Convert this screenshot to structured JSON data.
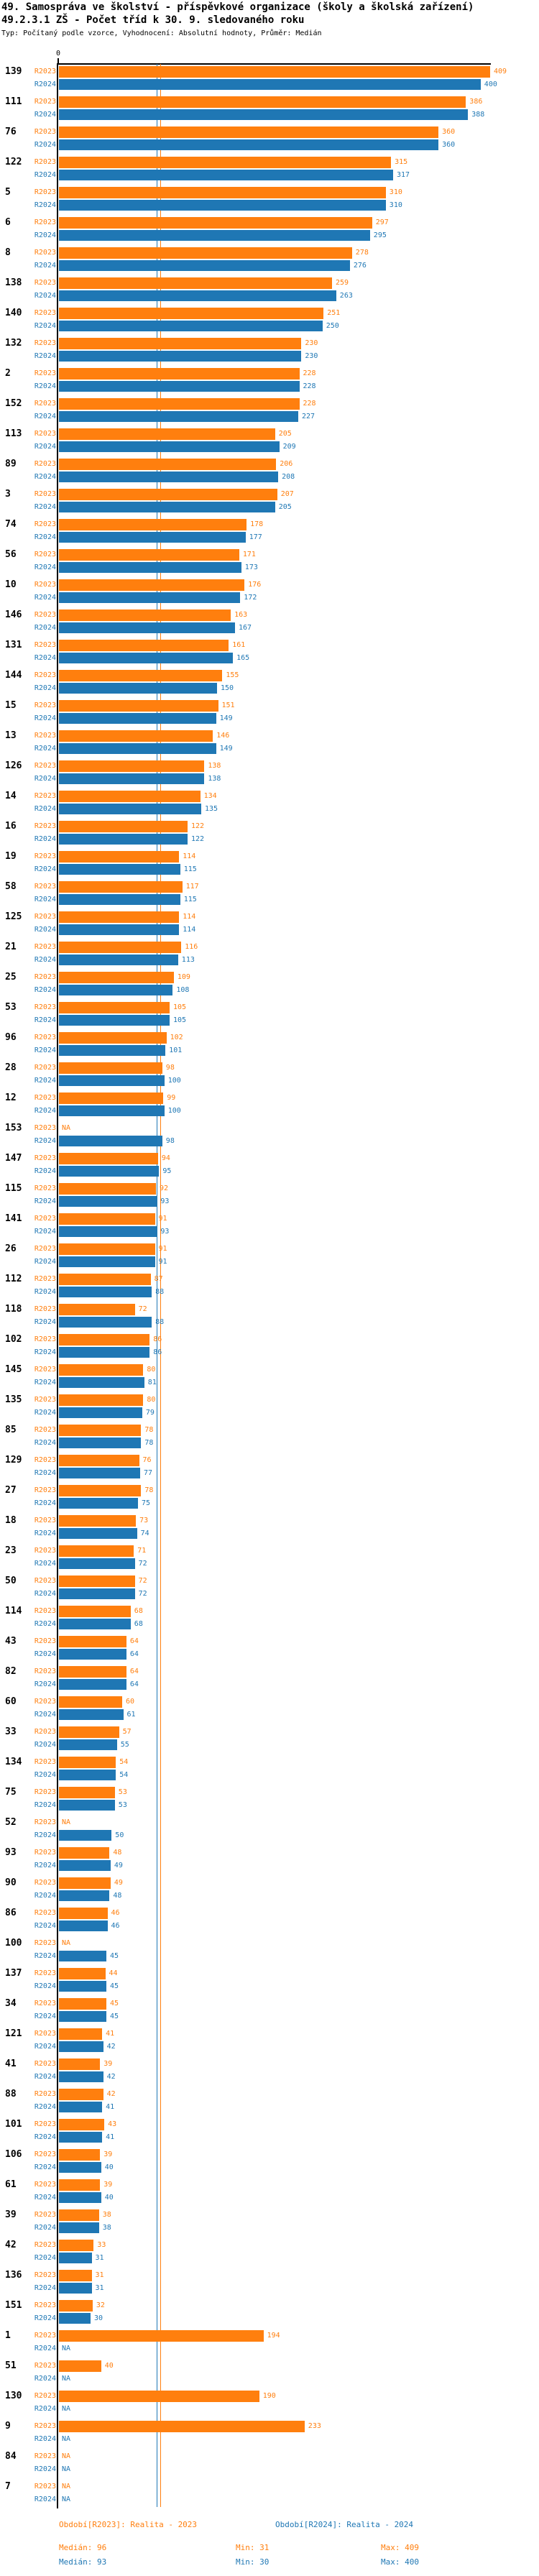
{
  "title_line1": "49. Samospráva ve školství - příspěvkové organizace (školy a školská zařízení)",
  "title_line2": "49.2.3.1 ZŠ - Počet tříd k 30. 9. sledovaného roku",
  "subtitle": "Typ: Počítaný podle vzorce, Vyhodnocení: Absolutní hodnoty, Průměr: Medián",
  "chart_data": {
    "type": "bar",
    "orientation": "horizontal",
    "x_axis": {
      "zero_label": "0",
      "x_max": 409
    },
    "series_labels": {
      "r2023": "R2023",
      "r2024": "R2024"
    },
    "colors": {
      "r2023": "#ff7f0e",
      "r2024": "#1f77b4"
    },
    "na_text": "NA",
    "median_values": {
      "r2023": 96,
      "r2024": 93
    },
    "legend": {
      "r2023": "Období[R2023]: Realita - 2023",
      "r2024": "Období[R2024]: Realita - 2024"
    },
    "stats": {
      "r2023": {
        "median": "Medián: 96",
        "min": "Min: 31",
        "max": "Max: 409"
      },
      "r2024": {
        "median": "Medián: 93",
        "min": "Min: 30",
        "max": "Max: 400"
      }
    },
    "rows": [
      {
        "id": "139",
        "r2023": 409,
        "r2024": 400
      },
      {
        "id": "111",
        "r2023": 386,
        "r2024": 388
      },
      {
        "id": "76",
        "r2023": 360,
        "r2024": 360
      },
      {
        "id": "122",
        "r2023": 315,
        "r2024": 317
      },
      {
        "id": "5",
        "r2023": 310,
        "r2024": 310
      },
      {
        "id": "6",
        "r2023": 297,
        "r2024": 295
      },
      {
        "id": "8",
        "r2023": 278,
        "r2024": 276
      },
      {
        "id": "138",
        "r2023": 259,
        "r2024": 263
      },
      {
        "id": "140",
        "r2023": 251,
        "r2024": 250
      },
      {
        "id": "132",
        "r2023": 230,
        "r2024": 230
      },
      {
        "id": "2",
        "r2023": 228,
        "r2024": 228
      },
      {
        "id": "152",
        "r2023": 228,
        "r2024": 227
      },
      {
        "id": "113",
        "r2023": 205,
        "r2024": 209
      },
      {
        "id": "89",
        "r2023": 206,
        "r2024": 208
      },
      {
        "id": "3",
        "r2023": 207,
        "r2024": 205
      },
      {
        "id": "74",
        "r2023": 178,
        "r2024": 177
      },
      {
        "id": "56",
        "r2023": 171,
        "r2024": 173
      },
      {
        "id": "10",
        "r2023": 176,
        "r2024": 172
      },
      {
        "id": "146",
        "r2023": 163,
        "r2024": 167
      },
      {
        "id": "131",
        "r2023": 161,
        "r2024": 165
      },
      {
        "id": "144",
        "r2023": 155,
        "r2024": 150
      },
      {
        "id": "15",
        "r2023": 151,
        "r2024": 149
      },
      {
        "id": "13",
        "r2023": 146,
        "r2024": 149
      },
      {
        "id": "126",
        "r2023": 138,
        "r2024": 138
      },
      {
        "id": "14",
        "r2023": 134,
        "r2024": 135
      },
      {
        "id": "16",
        "r2023": 122,
        "r2024": 122
      },
      {
        "id": "19",
        "r2023": 114,
        "r2024": 115
      },
      {
        "id": "58",
        "r2023": 117,
        "r2024": 115
      },
      {
        "id": "125",
        "r2023": 114,
        "r2024": 114
      },
      {
        "id": "21",
        "r2023": 116,
        "r2024": 113
      },
      {
        "id": "25",
        "r2023": 109,
        "r2024": 108
      },
      {
        "id": "53",
        "r2023": 105,
        "r2024": 105
      },
      {
        "id": "96",
        "r2023": 102,
        "r2024": 101
      },
      {
        "id": "28",
        "r2023": 98,
        "r2024": 100
      },
      {
        "id": "12",
        "r2023": 99,
        "r2024": 100
      },
      {
        "id": "153",
        "r2023": null,
        "r2024": 98
      },
      {
        "id": "147",
        "r2023": 94,
        "r2024": 95
      },
      {
        "id": "115",
        "r2023": 92,
        "r2024": 93
      },
      {
        "id": "141",
        "r2023": 91,
        "r2024": 93
      },
      {
        "id": "26",
        "r2023": 91,
        "r2024": 91
      },
      {
        "id": "112",
        "r2023": 87,
        "r2024": 88
      },
      {
        "id": "118",
        "r2023": 72,
        "r2024": 88
      },
      {
        "id": "102",
        "r2023": 86,
        "r2024": 86
      },
      {
        "id": "145",
        "r2023": 80,
        "r2024": 81
      },
      {
        "id": "135",
        "r2023": 80,
        "r2024": 79
      },
      {
        "id": "85",
        "r2023": 78,
        "r2024": 78
      },
      {
        "id": "129",
        "r2023": 76,
        "r2024": 77
      },
      {
        "id": "27",
        "r2023": 78,
        "r2024": 75
      },
      {
        "id": "18",
        "r2023": 73,
        "r2024": 74
      },
      {
        "id": "23",
        "r2023": 71,
        "r2024": 72
      },
      {
        "id": "50",
        "r2023": 72,
        "r2024": 72
      },
      {
        "id": "114",
        "r2023": 68,
        "r2024": 68
      },
      {
        "id": "43",
        "r2023": 64,
        "r2024": 64
      },
      {
        "id": "82",
        "r2023": 64,
        "r2024": 64
      },
      {
        "id": "60",
        "r2023": 60,
        "r2024": 61
      },
      {
        "id": "33",
        "r2023": 57,
        "r2024": 55
      },
      {
        "id": "134",
        "r2023": 54,
        "r2024": 54
      },
      {
        "id": "75",
        "r2023": 53,
        "r2024": 53
      },
      {
        "id": "52",
        "r2023": null,
        "r2024": 50
      },
      {
        "id": "93",
        "r2023": 48,
        "r2024": 49
      },
      {
        "id": "90",
        "r2023": 49,
        "r2024": 48
      },
      {
        "id": "86",
        "r2023": 46,
        "r2024": 46
      },
      {
        "id": "100",
        "r2023": null,
        "r2024": 45
      },
      {
        "id": "137",
        "r2023": 44,
        "r2024": 45
      },
      {
        "id": "34",
        "r2023": 45,
        "r2024": 45
      },
      {
        "id": "121",
        "r2023": 41,
        "r2024": 42
      },
      {
        "id": "41",
        "r2023": 39,
        "r2024": 42
      },
      {
        "id": "88",
        "r2023": 42,
        "r2024": 41
      },
      {
        "id": "101",
        "r2023": 43,
        "r2024": 41
      },
      {
        "id": "106",
        "r2023": 39,
        "r2024": 40
      },
      {
        "id": "61",
        "r2023": 39,
        "r2024": 40
      },
      {
        "id": "39",
        "r2023": 38,
        "r2024": 38
      },
      {
        "id": "42",
        "r2023": 33,
        "r2024": 31
      },
      {
        "id": "136",
        "r2023": 31,
        "r2024": 31
      },
      {
        "id": "151",
        "r2023": 32,
        "r2024": 30
      },
      {
        "id": "1",
        "r2023": 194,
        "r2024": null
      },
      {
        "id": "51",
        "r2023": 40,
        "r2024": null
      },
      {
        "id": "130",
        "r2023": 190,
        "r2024": null
      },
      {
        "id": "9",
        "r2023": 233,
        "r2024": null
      },
      {
        "id": "84",
        "r2023": null,
        "r2024": null
      },
      {
        "id": "7",
        "r2023": null,
        "r2024": null
      }
    ]
  }
}
